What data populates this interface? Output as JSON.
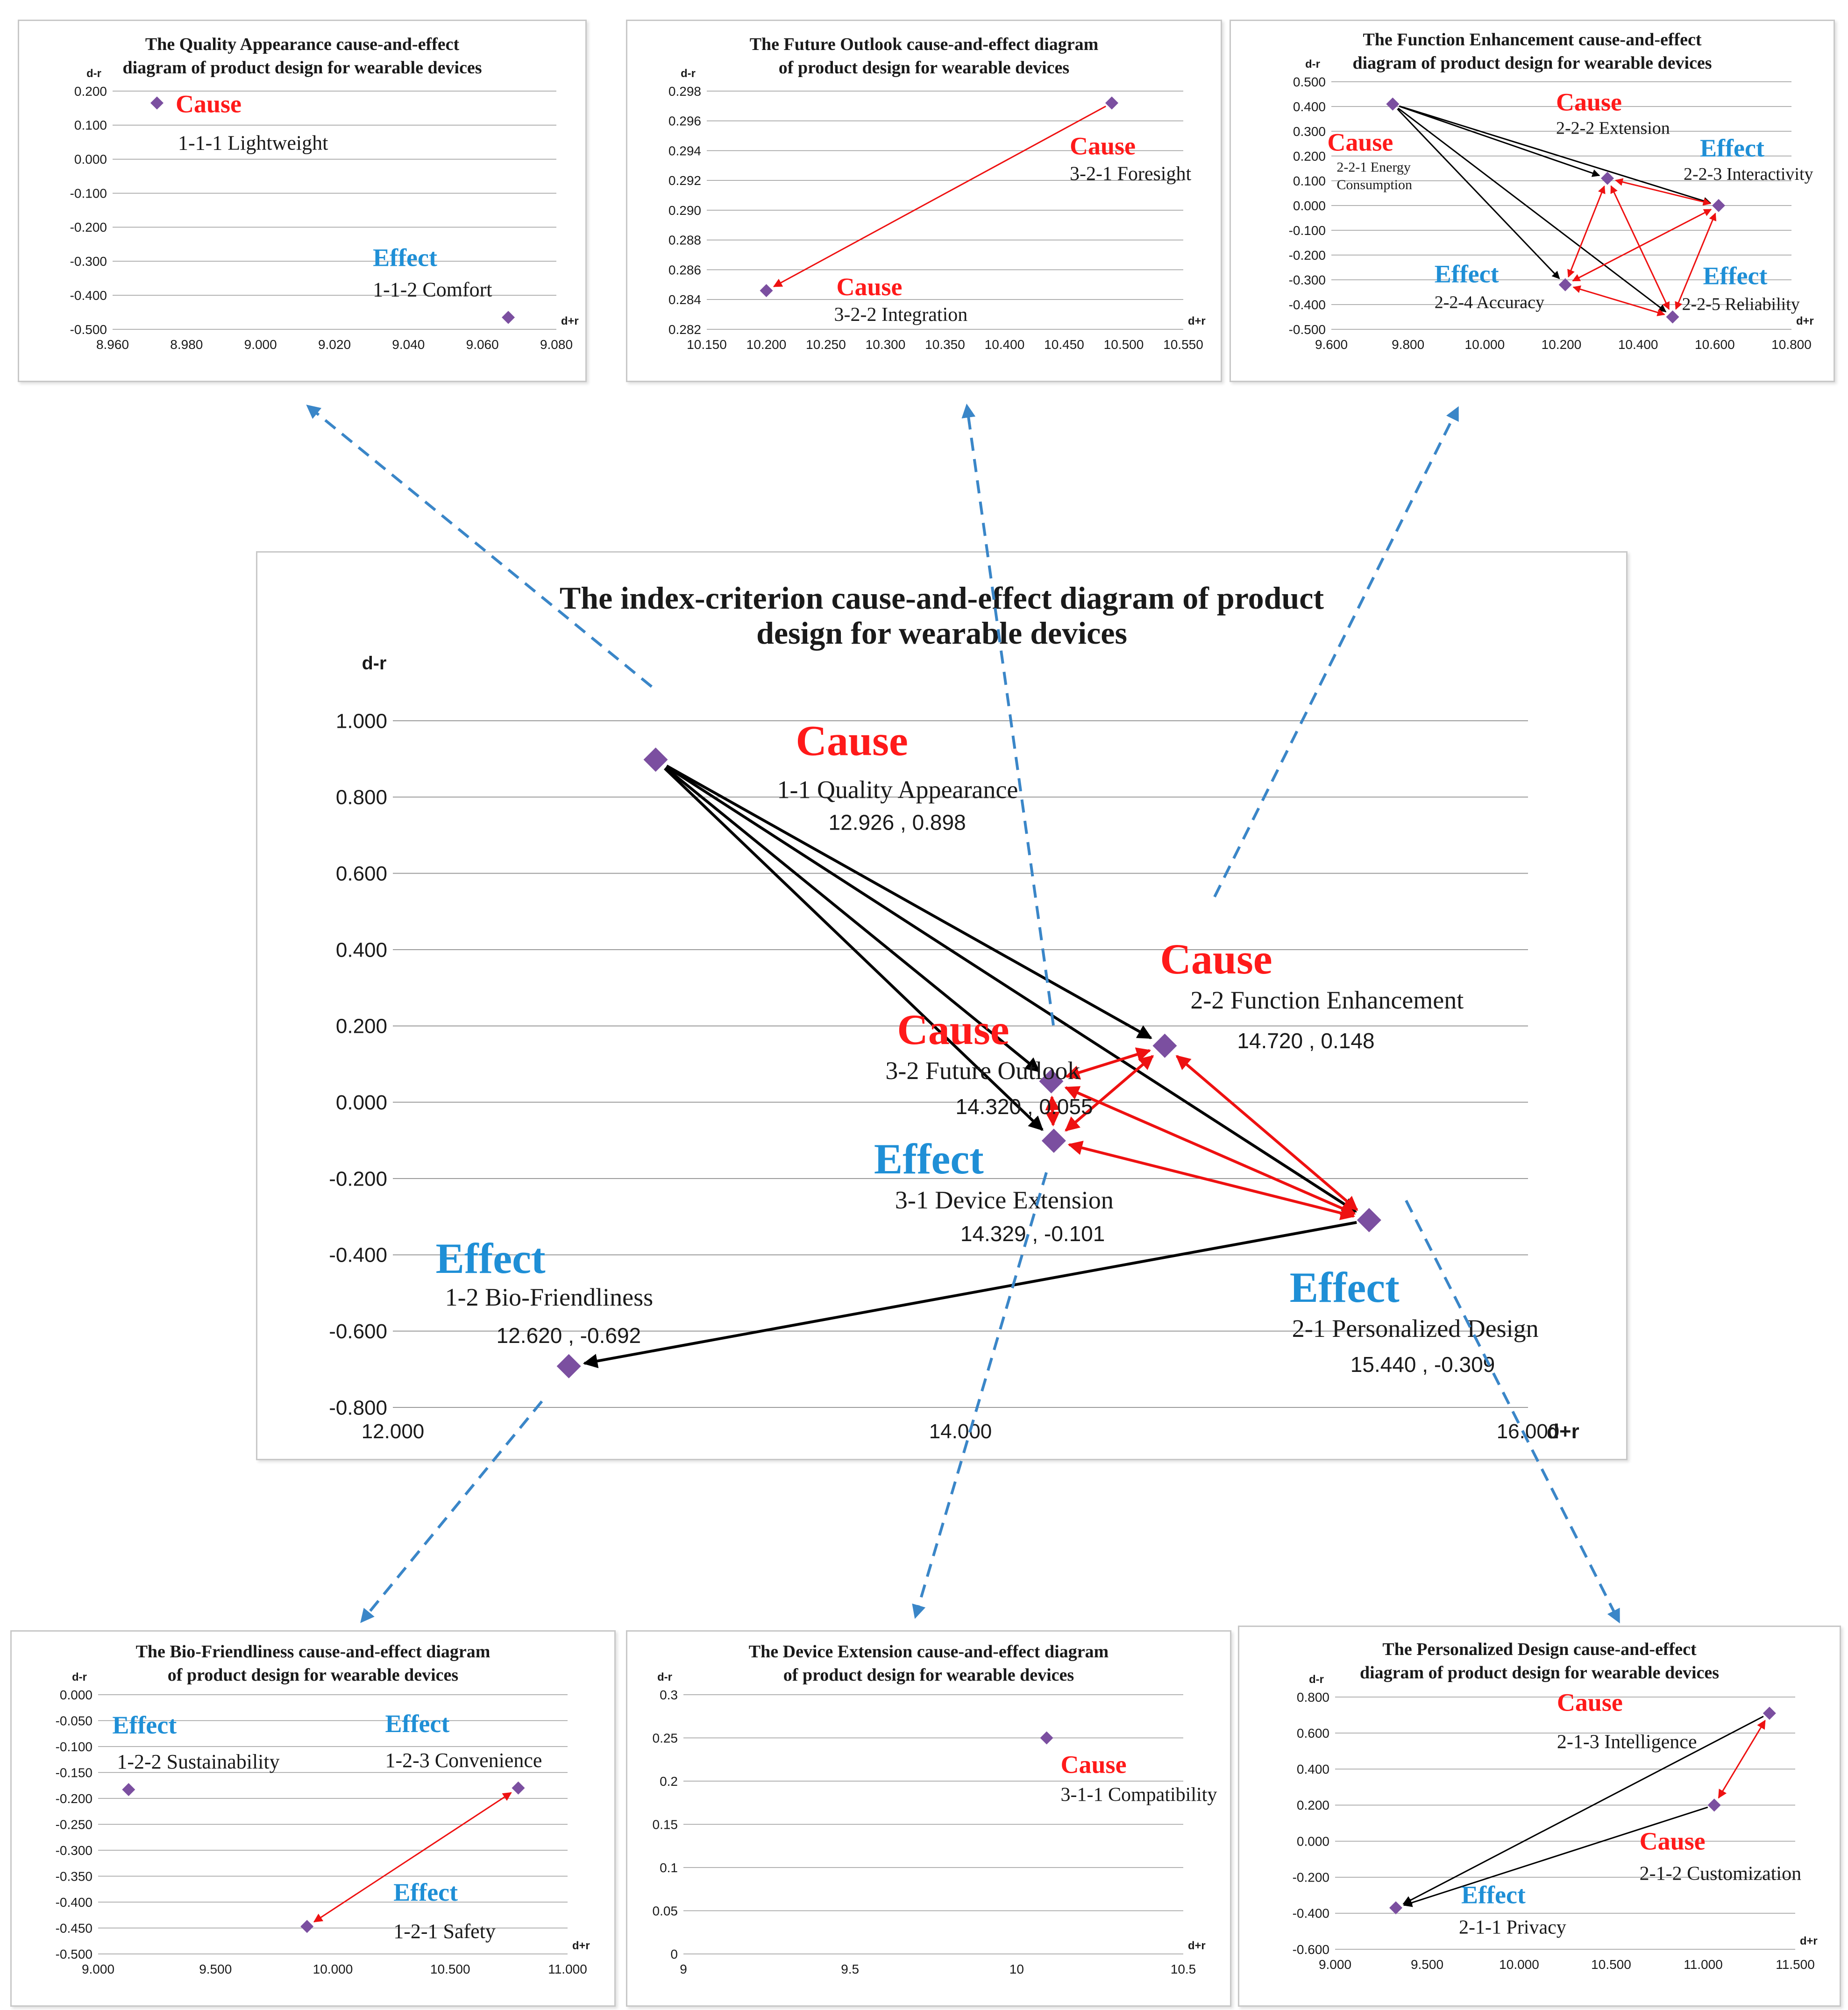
{
  "colors": {
    "cause": "#ff1a1a",
    "effect": "#1f8fd6",
    "marker": "#7b4fa0",
    "black_arrow": "#000000",
    "red_arrow": "#ee1111",
    "grid": "#9a9a9a",
    "axis_text": "#1a1a1a",
    "dashed_arrow": "#3a86c8"
  },
  "chart_data": [
    {
      "id": "main",
      "type": "scatter",
      "title": "The index-criterion cause-and-effect diagram of product design for wearable devices",
      "title_lines": [
        "The index-criterion cause-and-effect diagram of product",
        "design for wearable devices"
      ],
      "xlabel": "d+r",
      "ylabel": "d-r",
      "xlim": [
        12.0,
        16.0
      ],
      "ylim": [
        -0.8,
        1.0
      ],
      "xticks": [
        "12.000",
        "14.000",
        "16.000"
      ],
      "xtick_values": [
        12.0,
        14.0,
        16.0
      ],
      "yticks": [
        "1.000",
        "0.800",
        "0.600",
        "0.400",
        "0.200",
        "0.000",
        "-0.200",
        "-0.400",
        "-0.600",
        "-0.800"
      ],
      "ytick_values": [
        1.0,
        0.8,
        0.6,
        0.4,
        0.2,
        0.0,
        -0.2,
        -0.4,
        -0.6,
        -0.8
      ],
      "points": [
        {
          "id": "1-1",
          "x": 12.926,
          "y": 0.898,
          "tag": "Cause",
          "name": "1-1 Quality Appearance",
          "coord": "12.926 , 0.898"
        },
        {
          "id": "2-2",
          "x": 14.72,
          "y": 0.148,
          "tag": "Cause",
          "name": "2-2 Function Enhancement",
          "coord": "14.720 , 0.148"
        },
        {
          "id": "3-2",
          "x": 14.32,
          "y": 0.055,
          "tag": "Cause",
          "name": "3-2 Future Outlook",
          "coord": "14.320 , 0.055"
        },
        {
          "id": "3-1",
          "x": 14.329,
          "y": -0.101,
          "tag": "Effect",
          "name": "3-1 Device Extension",
          "coord": "14.329 , -0.101"
        },
        {
          "id": "1-2",
          "x": 12.62,
          "y": -0.692,
          "tag": "Effect",
          "name": "1-2 Bio-Friendliness",
          "coord": "12.620 , -0.692"
        },
        {
          "id": "2-1",
          "x": 15.44,
          "y": -0.309,
          "tag": "Effect",
          "name": "2-1 Personalized Design",
          "coord": "15.440 , -0.309"
        }
      ],
      "arrows": [
        {
          "from": "1-1",
          "to": "2-2",
          "color": "black",
          "head": "end"
        },
        {
          "from": "1-1",
          "to": "3-2",
          "color": "black",
          "head": "end"
        },
        {
          "from": "1-1",
          "to": "3-1",
          "color": "black",
          "head": "end"
        },
        {
          "from": "1-1",
          "to": "2-1",
          "color": "black",
          "head": "end"
        },
        {
          "from": "2-1",
          "to": "1-2",
          "color": "black",
          "head": "end"
        },
        {
          "from": "3-2",
          "to": "2-2",
          "color": "red",
          "head": "both"
        },
        {
          "from": "3-2",
          "to": "3-1",
          "color": "red",
          "head": "both"
        },
        {
          "from": "3-1",
          "to": "2-2",
          "color": "red",
          "head": "both"
        },
        {
          "from": "2-2",
          "to": "2-1",
          "color": "red",
          "head": "both"
        },
        {
          "from": "3-2",
          "to": "2-1",
          "color": "red",
          "head": "both"
        },
        {
          "from": "3-1",
          "to": "2-1",
          "color": "red",
          "head": "both"
        }
      ]
    },
    {
      "id": "quality",
      "type": "scatter",
      "title": "The Quality Appearance cause-and-effect diagram of product design for wearable devices",
      "title_lines": [
        "The Quality Appearance cause-and-effect",
        "diagram of product design for wearable devices"
      ],
      "xlabel": "d+r",
      "ylabel": "d-r",
      "xlim": [
        8.96,
        9.08
      ],
      "ylim": [
        -0.5,
        0.2
      ],
      "xticks": [
        "8.960",
        "8.980",
        "9.000",
        "9.020",
        "9.040",
        "9.060",
        "9.080"
      ],
      "xtick_values": [
        8.96,
        8.98,
        9.0,
        9.02,
        9.04,
        9.06,
        9.08
      ],
      "yticks": [
        "0.200",
        "0.100",
        "0.000",
        "-0.100",
        "-0.200",
        "-0.300",
        "-0.400",
        "-0.500"
      ],
      "ytick_values": [
        0.2,
        0.1,
        0.0,
        -0.1,
        -0.2,
        -0.3,
        -0.4,
        -0.5
      ],
      "points": [
        {
          "id": "1-1-1",
          "x": 8.972,
          "y": 0.165,
          "tag": "Cause",
          "name": "1-1-1 Lightweight"
        },
        {
          "id": "1-1-2",
          "x": 9.067,
          "y": -0.465,
          "tag": "Effect",
          "name": "1-1-2 Comfort"
        }
      ],
      "arrows": []
    },
    {
      "id": "future",
      "type": "scatter",
      "title": "The Future Outlook cause-and-effect diagram of product design for wearable devices",
      "title_lines": [
        "The Future Outlook cause-and-effect diagram",
        "of product design for wearable devices"
      ],
      "xlabel": "d+r",
      "ylabel": "d-r",
      "xlim": [
        10.15,
        10.55
      ],
      "ylim": [
        0.282,
        0.298
      ],
      "xticks": [
        "10.150",
        "10.200",
        "10.250",
        "10.300",
        "10.350",
        "10.400",
        "10.450",
        "10.500",
        "10.550"
      ],
      "xtick_values": [
        10.15,
        10.2,
        10.25,
        10.3,
        10.35,
        10.4,
        10.45,
        10.5,
        10.55
      ],
      "yticks": [
        "0.298",
        "0.296",
        "0.294",
        "0.292",
        "0.290",
        "0.288",
        "0.286",
        "0.284",
        "0.282"
      ],
      "ytick_values": [
        0.298,
        0.296,
        0.294,
        0.292,
        0.29,
        0.288,
        0.286,
        0.284,
        0.282
      ],
      "points": [
        {
          "id": "3-2-1",
          "x": 10.49,
          "y": 0.2972,
          "tag": "Cause",
          "name": "3-2-1 Foresight"
        },
        {
          "id": "3-2-2",
          "x": 10.2,
          "y": 0.2846,
          "tag": "Cause",
          "name": "3-2-2 Integration"
        }
      ],
      "arrows": [
        {
          "from": "3-2-1",
          "to": "3-2-2",
          "color": "red",
          "head": "end"
        }
      ]
    },
    {
      "id": "function",
      "type": "scatter",
      "title": "The Function Enhancement cause-and-effect diagram of product design for wearable devices",
      "title_lines": [
        "The Function Enhancement cause-and-effect",
        "diagram of product design for wearable devices"
      ],
      "xlabel": "d+r",
      "ylabel": "d-r",
      "xlim": [
        9.6,
        10.8
      ],
      "ylim": [
        -0.5,
        0.5
      ],
      "xticks": [
        "9.600",
        "9.800",
        "10.000",
        "10.200",
        "10.400",
        "10.600",
        "10.800"
      ],
      "xtick_values": [
        9.6,
        9.8,
        10.0,
        10.2,
        10.4,
        10.6,
        10.8
      ],
      "yticks": [
        "0.500",
        "0.400",
        "0.300",
        "0.200",
        "0.100",
        "0.000",
        "-0.100",
        "-0.200",
        "-0.300",
        "-0.400",
        "-0.500"
      ],
      "ytick_values": [
        0.5,
        0.4,
        0.3,
        0.2,
        0.1,
        0.0,
        -0.1,
        -0.2,
        -0.3,
        -0.4,
        -0.5
      ],
      "points": [
        {
          "id": "2-2-1",
          "x": 9.76,
          "y": 0.41,
          "tag": "Cause",
          "name": "2-2-1 Energy Consumption",
          "name_lines": [
            "2-2-1 Energy",
            "Consumption"
          ]
        },
        {
          "id": "2-2-2",
          "x": 10.32,
          "y": 0.11,
          "tag": "Cause",
          "name": "2-2-2 Extension"
        },
        {
          "id": "2-2-3",
          "x": 10.61,
          "y": 0.0,
          "tag": "Effect",
          "name": "2-2-3 Interactivity"
        },
        {
          "id": "2-2-4",
          "x": 10.21,
          "y": -0.32,
          "tag": "Effect",
          "name": "2-2-4 Accuracy"
        },
        {
          "id": "2-2-5",
          "x": 10.49,
          "y": -0.45,
          "tag": "Effect",
          "name": "2-2-5 Reliability"
        }
      ],
      "arrows": [
        {
          "from": "2-2-1",
          "to": "2-2-2",
          "color": "black",
          "head": "end"
        },
        {
          "from": "2-2-1",
          "to": "2-2-3",
          "color": "black",
          "head": "end"
        },
        {
          "from": "2-2-1",
          "to": "2-2-4",
          "color": "black",
          "head": "end"
        },
        {
          "from": "2-2-1",
          "to": "2-2-5",
          "color": "black",
          "head": "end"
        },
        {
          "from": "2-2-2",
          "to": "2-2-3",
          "color": "red",
          "head": "both"
        },
        {
          "from": "2-2-2",
          "to": "2-2-4",
          "color": "red",
          "head": "both"
        },
        {
          "from": "2-2-2",
          "to": "2-2-5",
          "color": "red",
          "head": "both"
        },
        {
          "from": "2-2-3",
          "to": "2-2-4",
          "color": "red",
          "head": "both"
        },
        {
          "from": "2-2-3",
          "to": "2-2-5",
          "color": "red",
          "head": "both"
        },
        {
          "from": "2-2-4",
          "to": "2-2-5",
          "color": "red",
          "head": "both"
        }
      ]
    },
    {
      "id": "bio",
      "type": "scatter",
      "title": "The Bio-Friendliness cause-and-effect diagram of product design for wearable devices",
      "title_lines": [
        "The Bio-Friendliness cause-and-effect diagram",
        "of product design for wearable devices"
      ],
      "xlabel": "d+r",
      "ylabel": "d-r",
      "xlim": [
        9.0,
        11.0
      ],
      "ylim": [
        -0.5,
        0.0
      ],
      "xticks": [
        "9.000",
        "9.500",
        "10.000",
        "10.500",
        "11.000"
      ],
      "xtick_values": [
        9.0,
        9.5,
        10.0,
        10.5,
        11.0
      ],
      "yticks": [
        "0.000",
        "-0.050",
        "-0.100",
        "-0.150",
        "-0.200",
        "-0.250",
        "-0.300",
        "-0.350",
        "-0.400",
        "-0.450",
        "-0.500"
      ],
      "ytick_values": [
        0.0,
        -0.05,
        -0.1,
        -0.15,
        -0.2,
        -0.25,
        -0.3,
        -0.35,
        -0.4,
        -0.45,
        -0.5
      ],
      "points": [
        {
          "id": "1-2-2",
          "x": 9.13,
          "y": -0.183,
          "tag": "Effect",
          "name": "1-2-2 Sustainability"
        },
        {
          "id": "1-2-3",
          "x": 10.79,
          "y": -0.18,
          "tag": "Effect",
          "name": "1-2-3 Convenience"
        },
        {
          "id": "1-2-1",
          "x": 9.89,
          "y": -0.447,
          "tag": "Effect",
          "name": "1-2-1 Safety"
        }
      ],
      "arrows": [
        {
          "from": "1-2-3",
          "to": "1-2-1",
          "color": "red",
          "head": "both"
        }
      ]
    },
    {
      "id": "device",
      "type": "scatter",
      "title": "The Device Extension cause-and-effect diagram of product design for wearable devices",
      "title_lines": [
        "The Device Extension cause-and-effect diagram",
        "of product design for wearable devices"
      ],
      "xlabel": "d+r",
      "ylabel": "d-r",
      "xlim": [
        9.0,
        10.5
      ],
      "ylim": [
        0.0,
        0.3
      ],
      "xticks": [
        "9",
        "9.5",
        "10",
        "10.5"
      ],
      "xtick_values": [
        9.0,
        9.5,
        10.0,
        10.5
      ],
      "yticks": [
        "0.3",
        "0.25",
        "0.2",
        "0.15",
        "0.1",
        "0.05",
        "0"
      ],
      "ytick_values": [
        0.3,
        0.25,
        0.2,
        0.15,
        0.1,
        0.05,
        0.0
      ],
      "points": [
        {
          "id": "3-1-1",
          "x": 10.09,
          "y": 0.25,
          "tag": "Cause",
          "name": "3-1-1 Compatibility"
        }
      ],
      "arrows": []
    },
    {
      "id": "personal",
      "type": "scatter",
      "title": "The Personalized Design cause-and-effect diagram of product design for wearable devices",
      "title_lines": [
        "The Personalized Design cause-and-effect",
        "diagram of product design for wearable devices"
      ],
      "xlabel": "d+r",
      "ylabel": "d-r",
      "xlim": [
        9.0,
        11.5
      ],
      "ylim": [
        -0.6,
        0.8
      ],
      "xticks": [
        "9.000",
        "9.500",
        "10.000",
        "10.500",
        "11.000",
        "11.500"
      ],
      "xtick_values": [
        9.0,
        9.5,
        10.0,
        10.5,
        11.0,
        11.5
      ],
      "yticks": [
        "0.800",
        "0.600",
        "0.400",
        "0.200",
        "0.000",
        "-0.200",
        "-0.400",
        "-0.600"
      ],
      "ytick_values": [
        0.8,
        0.6,
        0.4,
        0.2,
        0.0,
        -0.2,
        -0.4,
        -0.6
      ],
      "points": [
        {
          "id": "2-1-3",
          "x": 11.36,
          "y": 0.71,
          "tag": "Cause",
          "name": "2-1-3 Intelligence"
        },
        {
          "id": "2-1-2",
          "x": 11.06,
          "y": 0.2,
          "tag": "Cause",
          "name": "2-1-2 Customization"
        },
        {
          "id": "2-1-1",
          "x": 9.33,
          "y": -0.37,
          "tag": "Effect",
          "name": "2-1-1 Privacy"
        }
      ],
      "arrows": [
        {
          "from": "2-1-3",
          "to": "2-1-1",
          "color": "black",
          "head": "end"
        },
        {
          "from": "2-1-2",
          "to": "2-1-1",
          "color": "black",
          "head": "end"
        },
        {
          "from": "2-1-2",
          "to": "2-1-3",
          "color": "red",
          "head": "both"
        }
      ]
    }
  ]
}
